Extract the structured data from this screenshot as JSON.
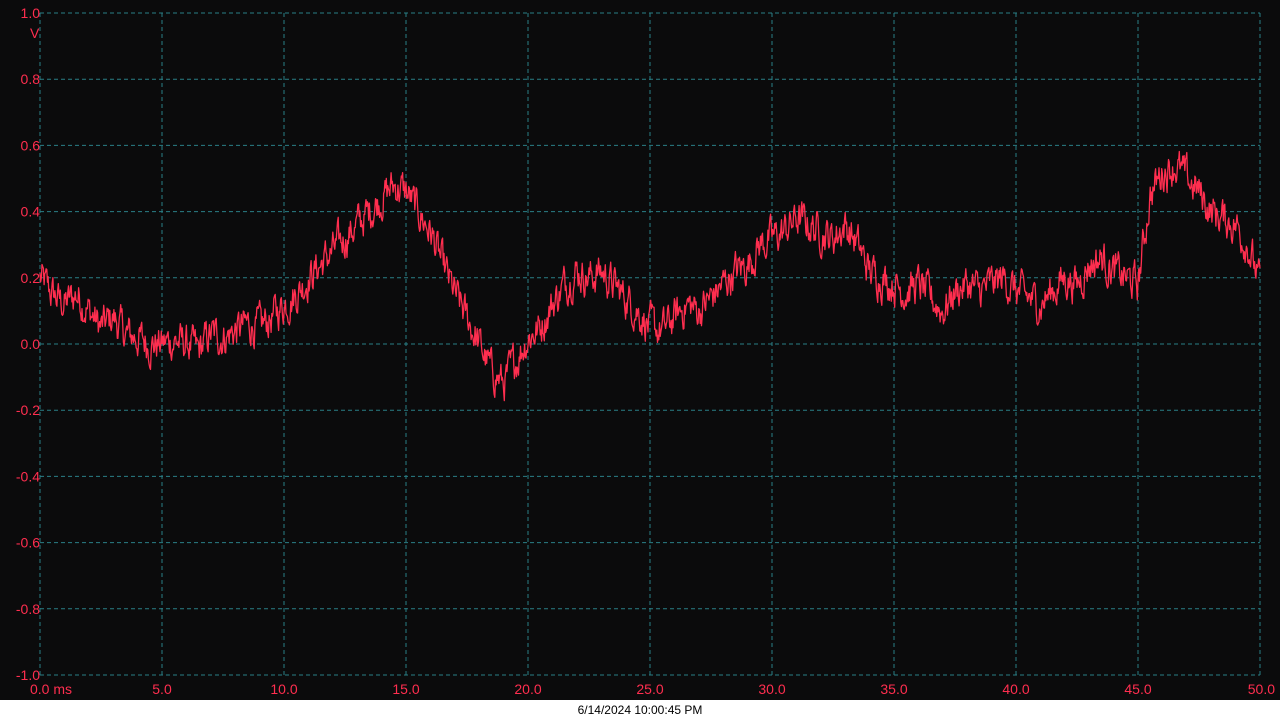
{
  "colors": {
    "background": "#0b0b0c",
    "grid": "#2a7f86",
    "trace": "#ff2e4f",
    "axis_text": "#ff2e4f",
    "status_bg": "#ffffff",
    "status_text": "#000000"
  },
  "status": {
    "timestamp": "6/14/2024 10:00:45 PM"
  },
  "chart_data": {
    "type": "line",
    "title": "",
    "xlabel": "",
    "ylabel": "",
    "y_unit_label": "V",
    "x_unit_label": "ms",
    "xlim": [
      0,
      50
    ],
    "ylim": [
      -1.0,
      1.0
    ],
    "grid": true,
    "legend": "none",
    "x_ticks": [
      "0.0",
      "5.0",
      "10.0",
      "15.0",
      "20.0",
      "25.0",
      "30.0",
      "35.0",
      "40.0",
      "45.0",
      "50.0"
    ],
    "y_ticks": [
      "1.0",
      "0.8",
      "0.6",
      "0.4",
      "0.2",
      "0.0",
      "-0.2",
      "-0.4",
      "-0.6",
      "-0.8",
      "-1.0"
    ],
    "series": [
      {
        "x": [
          0,
          0.5,
          1.0,
          1.5,
          2.0,
          2.5,
          3.0,
          3.5,
          4.0,
          4.5,
          5.0,
          5.5,
          6.0,
          6.5,
          7.0,
          7.5,
          8.0,
          8.5,
          9.0,
          9.5,
          10.0,
          10.5,
          11.0,
          11.5,
          12.0,
          12.5,
          13.0,
          13.5,
          14.0,
          14.5,
          15.0,
          15.5,
          16.0,
          16.5,
          17.0,
          17.5,
          18.0,
          18.5,
          19.0,
          19.5,
          20.0,
          20.5,
          21.0,
          21.5,
          22.0,
          22.5,
          23.0,
          23.5,
          24.0,
          24.5,
          25.0,
          25.5,
          26.0,
          26.5,
          27.0,
          27.5,
          28.0,
          28.5,
          29.0,
          29.5,
          30.0,
          30.5,
          31.0,
          31.5,
          32.0,
          32.5,
          33.0,
          33.5,
          34.0,
          34.5,
          35.0,
          35.5,
          36.0,
          36.5,
          37.0,
          37.5,
          38.0,
          38.5,
          39.0,
          39.5,
          40.0,
          40.5,
          41.0,
          41.5,
          42.0,
          42.5,
          43.0,
          43.5,
          44.0,
          44.5,
          45.0,
          45.5,
          46.0,
          46.5,
          47.0,
          47.5,
          48.0,
          48.5,
          49.0,
          49.5,
          50.0
        ],
        "values": [
          0.2,
          0.15,
          0.12,
          0.15,
          0.1,
          0.05,
          0.08,
          0.03,
          0.02,
          0.0,
          0.0,
          0.01,
          0.0,
          -0.02,
          0.03,
          0.02,
          0.04,
          0.06,
          0.05,
          0.08,
          0.12,
          0.15,
          0.2,
          0.24,
          0.28,
          0.32,
          0.36,
          0.4,
          0.44,
          0.48,
          0.46,
          0.4,
          0.34,
          0.24,
          0.15,
          0.08,
          0.0,
          -0.08,
          -0.12,
          -0.05,
          0.02,
          0.05,
          0.12,
          0.18,
          0.22,
          0.2,
          0.22,
          0.18,
          0.14,
          0.1,
          0.05,
          0.04,
          0.08,
          0.12,
          0.1,
          0.14,
          0.18,
          0.22,
          0.24,
          0.3,
          0.32,
          0.34,
          0.38,
          0.36,
          0.34,
          0.32,
          0.36,
          0.3,
          0.22,
          0.2,
          0.18,
          0.16,
          0.18,
          0.14,
          0.1,
          0.16,
          0.18,
          0.16,
          0.18,
          0.2,
          0.16,
          0.14,
          0.12,
          0.16,
          0.2,
          0.18,
          0.24,
          0.26,
          0.22,
          0.2,
          0.18,
          0.45,
          0.52,
          0.54,
          0.5,
          0.46,
          0.4,
          0.38,
          0.36,
          0.3,
          0.18
        ]
      }
    ]
  }
}
